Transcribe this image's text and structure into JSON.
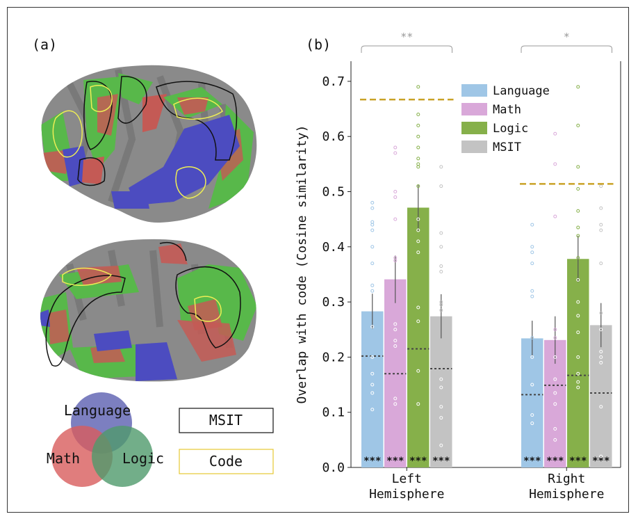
{
  "panel_a": {
    "label": "(a)",
    "venn": {
      "language": {
        "label": "Language",
        "color": "#5b5fb0"
      },
      "math": {
        "label": "Math",
        "color": "#d85c5c"
      },
      "logic": {
        "label": "Logic",
        "color": "#4f9a6b"
      }
    },
    "legend_boxes": [
      {
        "label": "MSIT",
        "border": "#111111"
      },
      {
        "label": "Code",
        "border": "#e6c833"
      }
    ],
    "colors": {
      "cortex": "#8a8a8a",
      "sulci": "#6f6f6f",
      "language": "#4c4cc0",
      "math": "#c45a55",
      "logic": "#58b84a",
      "msit_outline": "#111111",
      "code_outline": "#eeee55"
    }
  },
  "chart_data": {
    "type": "bar",
    "panel_label": "(b)",
    "ylabel": "Overlap with code (Cosine similarity)",
    "ylim": [
      0,
      0.72
    ],
    "yticks": [
      "0.0",
      "0.1",
      "0.2",
      "0.3",
      "0.4",
      "0.5",
      "0.6",
      "0.7"
    ],
    "categories": [
      "Left\nHemisphere",
      "Right\nHemisphere"
    ],
    "category_lines": [
      [
        "Left",
        "Hemisphere"
      ],
      [
        "Right",
        "Hemisphere"
      ]
    ],
    "series": [
      {
        "name": "Language",
        "color": "#9fc6e6",
        "values": [
          0.283,
          0.234
        ],
        "errors": [
          0.032,
          0.032
        ],
        "null_means": [
          0.202,
          0.132
        ],
        "significance": [
          "***",
          "***"
        ]
      },
      {
        "name": "Math",
        "color": "#d9a8d9",
        "values": [
          0.341,
          0.231
        ],
        "errors": [
          0.043,
          0.043
        ],
        "null_means": [
          0.17,
          0.149
        ],
        "significance": [
          "***",
          "***"
        ]
      },
      {
        "name": "Logic",
        "color": "#86b04a",
        "values": [
          0.471,
          0.378
        ],
        "errors": [
          0.042,
          0.042
        ],
        "null_means": [
          0.215,
          0.167
        ],
        "significance": [
          "***",
          "***"
        ]
      },
      {
        "name": "MSIT",
        "color": "#c3c3c3",
        "values": [
          0.274,
          0.258
        ],
        "errors": [
          0.04,
          0.04
        ],
        "null_means": [
          0.179,
          0.135
        ],
        "significance": [
          "***",
          "***"
        ]
      }
    ],
    "reference_lines": [
      {
        "hemisphere": "Left",
        "value": 0.667,
        "color": "#c9a227"
      },
      {
        "hemisphere": "Right",
        "value": 0.514,
        "color": "#c9a227"
      }
    ],
    "group_brackets": [
      {
        "hemisphere": "Left",
        "label": "**"
      },
      {
        "hemisphere": "Right",
        "label": "*"
      }
    ],
    "points": {
      "Left": {
        "Language": [
          0.48,
          0.47,
          0.445,
          0.44,
          0.43,
          0.4,
          0.37,
          0.33,
          0.32,
          0.255,
          0.2,
          0.17,
          0.15,
          0.135,
          0.105
        ],
        "Math": [
          0.58,
          0.57,
          0.5,
          0.49,
          0.45,
          0.375,
          0.26,
          0.25,
          0.23,
          0.22,
          0.125,
          0.115,
          0.38
        ],
        "Logic": [
          0.69,
          0.64,
          0.62,
          0.6,
          0.58,
          0.56,
          0.55,
          0.545,
          0.51,
          0.45,
          0.43,
          0.41,
          0.39,
          0.29,
          0.265,
          0.175,
          0.115
        ],
        "MSIT": [
          0.545,
          0.51,
          0.425,
          0.4,
          0.365,
          0.355,
          0.3,
          0.295,
          0.285,
          0.16,
          0.145,
          0.11,
          0.09,
          0.04
        ]
      },
      "Right": {
        "Language": [
          0.44,
          0.4,
          0.39,
          0.37,
          0.32,
          0.31,
          0.235,
          0.2,
          0.15,
          0.095,
          0.08
        ],
        "Math": [
          0.605,
          0.55,
          0.455,
          0.25,
          0.235,
          0.2,
          0.16,
          0.135,
          0.115,
          0.07,
          0.05
        ],
        "Logic": [
          0.69,
          0.62,
          0.545,
          0.505,
          0.465,
          0.435,
          0.42,
          0.38,
          0.34,
          0.3,
          0.275,
          0.245,
          0.2,
          0.17,
          0.155,
          0.145
        ],
        "MSIT": [
          0.51,
          0.47,
          0.44,
          0.43,
          0.37,
          0.28,
          0.25,
          0.21,
          0.2,
          0.19,
          0.11,
          0.02
        ]
      }
    },
    "legend": {
      "placement": "upper-right",
      "entries": [
        "Language",
        "Math",
        "Logic",
        "MSIT"
      ]
    },
    "grid": false
  }
}
